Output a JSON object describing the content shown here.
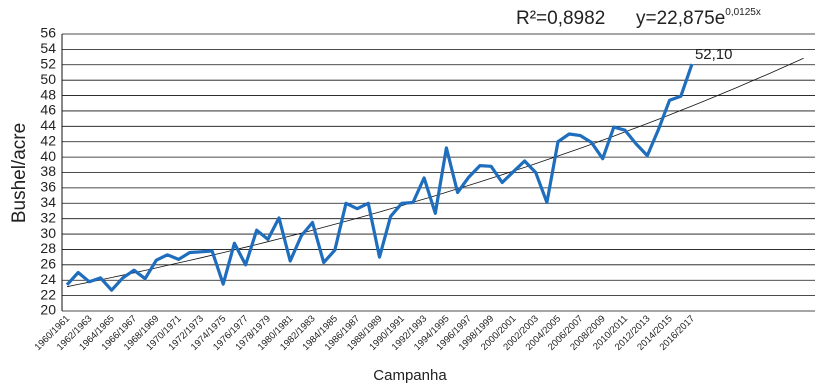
{
  "chart_data": {
    "type": "line",
    "x_label": "Campanha",
    "y_label": "Bushel/acre",
    "annotations": {
      "r2": "R²=0,8982",
      "equation": "y=22,875e",
      "exponent": "0,0125x"
    },
    "trendline": {
      "type": "exponential",
      "a": 22.875,
      "b": 0.0125
    },
    "categories": [
      "1960/1961",
      null,
      "1962/1963",
      null,
      "1964/1965",
      null,
      "1966/1967",
      null,
      "1968/1969",
      null,
      "1970/1971",
      null,
      "1972/1973",
      null,
      "1974/1975",
      null,
      "1976/1977",
      null,
      "1978/1979",
      null,
      "1980/1981",
      null,
      "1982/1983",
      null,
      "1984/1985",
      null,
      "1986/1987",
      null,
      "1988/1989",
      null,
      "1990/1991",
      null,
      "1992/1993",
      null,
      "1994/1995",
      null,
      "1996/1997",
      null,
      "1998/1999",
      null,
      "2000/2001",
      null,
      "2002/2003",
      null,
      "2004/2005",
      null,
      "2006/2007",
      null,
      "2008/2009",
      null,
      "2010/2011",
      null,
      "2012/2013",
      null,
      "2014/2015",
      null,
      "2016/2017",
      null,
      null,
      null,
      null,
      null,
      null,
      null,
      null,
      null,
      null
    ],
    "series": [
      {
        "color": "#1f6dbd",
        "values": [
          23.4,
          25.0,
          23.8,
          24.3,
          22.7,
          24.3,
          25.3,
          24.2,
          26.6,
          27.3,
          26.7,
          27.6,
          27.7,
          27.8,
          23.5,
          28.8,
          26.0,
          30.5,
          29.3,
          32.1,
          26.5,
          29.8,
          31.5,
          26.3,
          27.9,
          34.0,
          33.3,
          34.0,
          27.0,
          32.3,
          34.0,
          34.1,
          37.3,
          32.7,
          41.2,
          35.4,
          37.4,
          38.9,
          38.8,
          36.7,
          38.1,
          39.5,
          38.0,
          34.1,
          42.0,
          43.0,
          42.8,
          41.9,
          39.8,
          43.9,
          43.5,
          41.7,
          40.2,
          43.6,
          47.4,
          47.9,
          52.1,
          null,
          null,
          null,
          null,
          null,
          null,
          null,
          null,
          null,
          null
        ],
        "value_labels": [
          null,
          null,
          null,
          null,
          null,
          null,
          null,
          null,
          null,
          null,
          null,
          null,
          null,
          null,
          null,
          null,
          null,
          null,
          null,
          null,
          null,
          null,
          null,
          null,
          null,
          null,
          null,
          null,
          null,
          null,
          null,
          null,
          null,
          null,
          null,
          null,
          null,
          null,
          null,
          null,
          null,
          null,
          null,
          null,
          null,
          null,
          null,
          null,
          null,
          null,
          null,
          null,
          null,
          null,
          null,
          null,
          "52,10",
          null,
          null,
          null,
          null,
          null,
          null,
          null,
          null,
          null,
          null
        ]
      }
    ],
    "ylim": [
      20,
      56
    ],
    "yticks": [
      20,
      22,
      24,
      26,
      28,
      30,
      32,
      34,
      36,
      38,
      40,
      42,
      44,
      46,
      48,
      50,
      52,
      54,
      56
    ],
    "grid": true
  }
}
